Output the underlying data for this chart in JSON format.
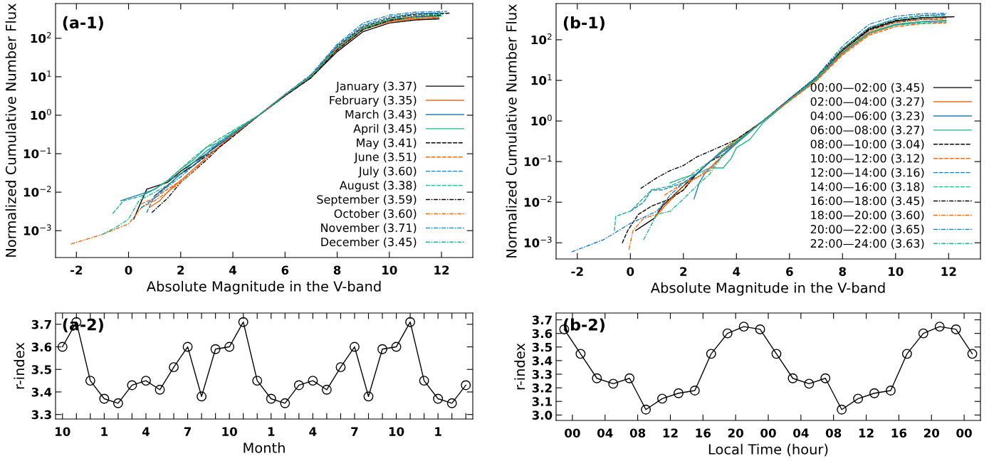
{
  "chart_data": [
    {
      "type": "line",
      "xlabel": "Absolute Magnitude in the V-band",
      "ylabel": "Normalized Cumulative Number Flux",
      "annotations": [
        "(a-1)"
      ],
      "log": "y",
      "legend": "bottom right",
      "xlim": [
        -2.8,
        13.2
      ],
      "xticks": [
        -2,
        0,
        2,
        4,
        6,
        8,
        10,
        12
      ],
      "ylim": [
        0.0002,
        800
      ],
      "yticks": [
        {
          "value": 0.001,
          "label": "10$^{−3}$"
        },
        {
          "value": 0.01,
          "label": "10$^{−2}$"
        },
        {
          "value": 0.1,
          "label": "10$^{−1}$"
        },
        {
          "value": 1,
          "label": "10$^{0}$"
        },
        {
          "value": 10,
          "label": "10$^{1}$"
        },
        {
          "value": 100,
          "label": "10$^{2}$"
        }
      ],
      "series": [
        {
          "name": "January (3.37)",
          "color": "#000000",
          "line_style": "solid",
          "x": [
            0.2,
            0.5,
            0.7,
            1.5,
            2,
            2.5,
            3,
            3.5,
            4,
            5,
            6,
            7,
            8,
            9,
            10,
            11,
            11.9
          ],
          "values": [
            0.002,
            0.006,
            0.012,
            0.018,
            0.035,
            0.06,
            0.1,
            0.18,
            0.3,
            1.0,
            3.2,
            9.5,
            45,
            150,
            250,
            300,
            320
          ]
        },
        {
          "name": "February (3.35)",
          "color": "#e66c1e",
          "line_style": "solid",
          "x": [
            0.8,
            1.2,
            1.6,
            2,
            2.5,
            3,
            3.5,
            4,
            5,
            6,
            7,
            8,
            9,
            10,
            11,
            11.9
          ],
          "values": [
            0.004,
            0.006,
            0.012,
            0.02,
            0.04,
            0.08,
            0.16,
            0.33,
            1.0,
            3.3,
            10,
            50,
            170,
            270,
            320,
            340
          ]
        },
        {
          "name": "March (3.43)",
          "color": "#1f7fc0",
          "line_style": "solid",
          "x": [
            -0.3,
            0.7,
            1,
            1.5,
            2,
            2.5,
            3,
            3.5,
            4,
            5,
            6,
            7,
            8,
            9,
            10,
            11,
            11.9
          ],
          "values": [
            0.006,
            0.01,
            0.012,
            0.02,
            0.03,
            0.05,
            0.1,
            0.2,
            0.33,
            1.0,
            3.3,
            10,
            55,
            180,
            300,
            370,
            390
          ]
        },
        {
          "name": "April (3.45)",
          "color": "#26b38a",
          "line_style": "solid",
          "x": [
            0.5,
            1,
            1.5,
            2,
            2.5,
            3,
            3.5,
            4,
            5,
            6,
            7,
            8,
            9,
            10,
            11,
            11.9
          ],
          "values": [
            0.008,
            0.012,
            0.02,
            0.04,
            0.07,
            0.15,
            0.2,
            0.35,
            1.0,
            3.4,
            10,
            55,
            180,
            290,
            350,
            370
          ]
        },
        {
          "name": "May (3.41)",
          "color": "#000000",
          "line_style": "dashed",
          "x": [
            1,
            1.5,
            2,
            2.5,
            3,
            3.5,
            4,
            5,
            6,
            7,
            8,
            9,
            10,
            11,
            12.3
          ],
          "values": [
            0.008,
            0.015,
            0.03,
            0.05,
            0.09,
            0.15,
            0.28,
            1.0,
            3.3,
            10.5,
            60,
            200,
            330,
            420,
            450
          ]
        },
        {
          "name": "June (3.51)",
          "color": "#e66c1e",
          "line_style": "dashed",
          "x": [
            0.5,
            1,
            1.5,
            2,
            2.5,
            3,
            3.5,
            4,
            5,
            6,
            7,
            8,
            9,
            10,
            11,
            11.9
          ],
          "values": [
            0.005,
            0.007,
            0.012,
            0.02,
            0.04,
            0.08,
            0.16,
            0.3,
            1.0,
            3.5,
            10,
            52,
            170,
            280,
            330,
            350
          ]
        },
        {
          "name": "July (3.60)",
          "color": "#1f7fc0",
          "line_style": "dashed",
          "x": [
            0.7,
            1,
            1.5,
            2,
            2.5,
            3,
            3.5,
            4,
            5,
            6,
            7,
            8,
            9,
            10,
            11,
            12
          ],
          "values": [
            0.003,
            0.008,
            0.015,
            0.03,
            0.06,
            0.12,
            0.18,
            0.33,
            1.0,
            3.4,
            11,
            65,
            220,
            360,
            440,
            460
          ]
        },
        {
          "name": "August (3.38)",
          "color": "#26b38a",
          "line_style": "dashed",
          "x": [
            -0.6,
            -0.2,
            0.2,
            0.5,
            1,
            1.5,
            2,
            2.5,
            3,
            3.5,
            4,
            5,
            6,
            7,
            8,
            9,
            10,
            11,
            12
          ],
          "values": [
            0.0028,
            0.006,
            0.007,
            0.008,
            0.012,
            0.02,
            0.04,
            0.08,
            0.15,
            0.25,
            0.4,
            1.0,
            3.3,
            10,
            55,
            180,
            300,
            360,
            380
          ]
        },
        {
          "name": "September (3.59)",
          "color": "#000000",
          "line_style": "dashdot",
          "x": [
            0.9,
            1.5,
            2,
            2.5,
            3,
            3.5,
            4,
            5,
            6,
            7,
            8,
            9,
            10,
            11,
            12
          ],
          "values": [
            0.003,
            0.007,
            0.018,
            0.035,
            0.07,
            0.15,
            0.28,
            1.0,
            3.2,
            9.5,
            50,
            170,
            290,
            370,
            400
          ]
        },
        {
          "name": "October (3.60)",
          "color": "#e66c1e",
          "line_style": "dashdot",
          "x": [
            -2.2,
            -1,
            0,
            0.5,
            1,
            1.5,
            2,
            2.5,
            3,
            3.5,
            4,
            5,
            6,
            7,
            8,
            9,
            10,
            11,
            11.8
          ],
          "values": [
            0.00045,
            0.0008,
            0.0015,
            0.004,
            0.006,
            0.01,
            0.018,
            0.035,
            0.08,
            0.16,
            0.3,
            1.0,
            3.4,
            10.5,
            55,
            190,
            320,
            360,
            370
          ]
        },
        {
          "name": "November (3.71)",
          "color": "#1f7fc0",
          "line_style": "dashdot",
          "x": [
            0.5,
            1,
            1.5,
            2,
            2.5,
            3,
            3.5,
            4,
            5,
            6,
            7,
            8,
            9,
            10,
            11,
            12.2
          ],
          "values": [
            0.004,
            0.007,
            0.014,
            0.025,
            0.05,
            0.1,
            0.2,
            0.33,
            1.0,
            3.5,
            11.5,
            70,
            250,
            400,
            480,
            500
          ]
        },
        {
          "name": "December (3.45)",
          "color": "#26b38a",
          "line_style": "dashdot",
          "x": [
            -1,
            -0.5,
            0,
            0.4,
            1,
            1.5,
            2,
            2.5,
            3,
            3.5,
            4,
            5,
            6,
            7,
            8,
            9,
            10,
            11,
            12.1
          ],
          "values": [
            0.0008,
            0.0012,
            0.002,
            0.006,
            0.01,
            0.015,
            0.03,
            0.06,
            0.12,
            0.22,
            0.38,
            1.0,
            3.4,
            10.5,
            58,
            190,
            320,
            400,
            420
          ]
        }
      ]
    },
    {
      "type": "line",
      "xlabel": "Absolute Magnitude in the V-band",
      "ylabel": "Normalized Cumulative Number Flux",
      "annotations": [
        "(b-1)"
      ],
      "log": "y",
      "legend": "bottom right",
      "xlim": [
        -2.8,
        13.2
      ],
      "xticks": [
        -2,
        0,
        2,
        4,
        6,
        8,
        10,
        12
      ],
      "ylim": [
        0.0004,
        780
      ],
      "yticks": [
        {
          "value": 0.001,
          "label": "10$^{−3}$"
        },
        {
          "value": 0.01,
          "label": "10$^{−2}$"
        },
        {
          "value": 0.1,
          "label": "10$^{−1}$"
        },
        {
          "value": 1,
          "label": "10$^{0}$"
        },
        {
          "value": 10,
          "label": "10$^{1}$"
        },
        {
          "value": 100,
          "label": "10$^{2}$"
        }
      ],
      "series": [
        {
          "name": "00:00—02:00 (3.45)",
          "color": "#000000",
          "line_style": "solid",
          "x": [
            0.2,
            0.9,
            1.2,
            2,
            2.5,
            3,
            3.5,
            4,
            5,
            6,
            7,
            8,
            9,
            10,
            11,
            12.2
          ],
          "values": [
            0.002,
            0.004,
            0.008,
            0.025,
            0.05,
            0.1,
            0.18,
            0.3,
            1.0,
            3.3,
            11,
            55,
            180,
            290,
            350,
            370
          ]
        },
        {
          "name": "02:00—04:00 (3.27)",
          "color": "#e66c1e",
          "line_style": "solid",
          "x": [
            0.9,
            1.3,
            1.7,
            2,
            2.5,
            3,
            3.5,
            4,
            5,
            6,
            7,
            8,
            9,
            10,
            11,
            11.9
          ],
          "values": [
            0.004,
            0.008,
            0.015,
            0.02,
            0.05,
            0.1,
            0.2,
            0.35,
            1.0,
            3.2,
            10,
            45,
            140,
            230,
            280,
            300
          ]
        },
        {
          "name": "04:00—06:00 (3.23)",
          "color": "#1f7fc0",
          "line_style": "solid",
          "x": [
            2.4,
            2.6,
            2.8,
            3,
            3.5,
            4,
            5,
            6,
            7,
            8,
            9,
            10,
            11,
            11.9
          ],
          "values": [
            0.012,
            0.03,
            0.05,
            0.07,
            0.14,
            0.28,
            1.0,
            3.2,
            10,
            48,
            150,
            240,
            280,
            290
          ]
        },
        {
          "name": "06:00—08:00 (3.27)",
          "color": "#26b38a",
          "line_style": "solid",
          "x": [
            1.5,
            2,
            2.5,
            3,
            3.5,
            3.8,
            4,
            4.5,
            5,
            6,
            7,
            8,
            9,
            10,
            11,
            11.9
          ],
          "values": [
            0.03,
            0.04,
            0.05,
            0.07,
            0.07,
            0.12,
            0.22,
            0.35,
            0.9,
            3.2,
            10,
            50,
            150,
            240,
            280,
            300
          ]
        },
        {
          "name": "08:00—10:00 (3.04)",
          "color": "#000000",
          "line_style": "dashed",
          "x": [
            -0.3,
            -0.1,
            0.3,
            0.8,
            1.5,
            2,
            2.5,
            3,
            3.5,
            4,
            5,
            6,
            7,
            8,
            9,
            10,
            11,
            11.9
          ],
          "values": [
            0.001,
            0.002,
            0.005,
            0.008,
            0.012,
            0.02,
            0.05,
            0.1,
            0.15,
            0.3,
            1.0,
            3.5,
            11,
            55,
            170,
            270,
            320,
            330
          ]
        },
        {
          "name": "10:00—12:00 (3.12)",
          "color": "#e66c1e",
          "line_style": "dashed",
          "x": [
            1.3,
            2,
            2.5,
            3,
            3.5,
            4,
            5,
            6,
            7,
            8,
            9,
            10,
            11,
            11.9
          ],
          "values": [
            0.015,
            0.03,
            0.04,
            0.06,
            0.15,
            0.3,
            1.0,
            3.1,
            9.5,
            42,
            130,
            210,
            250,
            260
          ]
        },
        {
          "name": "12:00—14:00 (3.16)",
          "color": "#1f7fc0",
          "line_style": "dashed",
          "x": [
            0,
            0.5,
            0.8,
            1.2,
            2,
            2.5,
            3,
            3.5,
            4,
            5,
            6,
            7,
            8,
            9,
            10,
            11,
            11.9
          ],
          "values": [
            0.006,
            0.01,
            0.02,
            0.02,
            0.03,
            0.05,
            0.1,
            0.18,
            0.3,
            1.0,
            3.4,
            11,
            60,
            200,
            330,
            400,
            420
          ]
        },
        {
          "name": "14:00—16:00 (3.18)",
          "color": "#26b38a",
          "line_style": "dashed",
          "x": [
            -0.6,
            -0.55,
            0,
            0.8,
            1.5,
            2,
            2.5,
            3,
            3.5,
            4,
            5,
            6,
            7,
            8,
            9,
            10,
            11,
            11.9
          ],
          "values": [
            0.002,
            0.0045,
            0.006,
            0.02,
            0.025,
            0.035,
            0.06,
            0.1,
            0.2,
            0.32,
            1.0,
            3.3,
            10.5,
            50,
            150,
            230,
            260,
            270
          ]
        },
        {
          "name": "16:00—18:00 (3.45)",
          "color": "#000000",
          "line_style": "dashdot",
          "x": [
            0.4,
            1,
            1.5,
            2,
            2.5,
            3,
            3.5,
            4,
            5,
            6,
            7,
            8,
            9,
            10,
            11,
            11.9
          ],
          "values": [
            0.022,
            0.04,
            0.06,
            0.08,
            0.13,
            0.18,
            0.25,
            0.35,
            1.0,
            3.5,
            12,
            60,
            190,
            300,
            350,
            360
          ]
        },
        {
          "name": "18:00—20:00 (3.60)",
          "color": "#e66c1e",
          "line_style": "dashdot",
          "x": [
            -0.05,
            0.1,
            0.5,
            1,
            1.5,
            2,
            2.5,
            3,
            3.5,
            4,
            5,
            6,
            7,
            8,
            9,
            10,
            11,
            11.9
          ],
          "values": [
            0.0007,
            0.002,
            0.004,
            0.005,
            0.012,
            0.025,
            0.04,
            0.07,
            0.15,
            0.3,
            1.0,
            3.3,
            10,
            52,
            165,
            270,
            320,
            330
          ]
        },
        {
          "name": "20:00—22:00 (3.65)",
          "color": "#1f7fc0",
          "line_style": "dashdot",
          "x": [
            -2.2,
            -1,
            0,
            1,
            1.5,
            2,
            2.5,
            3,
            3.5,
            4,
            5,
            6,
            7,
            8,
            9,
            10,
            11,
            11.9
          ],
          "values": [
            0.0006,
            0.0012,
            0.003,
            0.006,
            0.015,
            0.03,
            0.05,
            0.1,
            0.18,
            0.3,
            1.0,
            3.5,
            12,
            70,
            240,
            380,
            440,
            450
          ]
        },
        {
          "name": "22:00—24:00 (3.63)",
          "color": "#26b38a",
          "line_style": "dashdot",
          "x": [
            0.5,
            1,
            1.5,
            2,
            2.5,
            3,
            3.5,
            4,
            5,
            6,
            7,
            8,
            9,
            10,
            11,
            11.9
          ],
          "values": [
            0.0012,
            0.005,
            0.006,
            0.012,
            0.025,
            0.05,
            0.15,
            0.3,
            1.0,
            3.3,
            11,
            60,
            200,
            320,
            380,
            400
          ]
        }
      ]
    },
    {
      "type": "line",
      "xlabel": "Month",
      "ylabel": "r-index",
      "annotations": [
        "(a-2)"
      ],
      "marker": "circle",
      "categories": [
        "10",
        null,
        null,
        "1",
        null,
        null,
        "4",
        null,
        null,
        "7",
        null,
        null,
        "10",
        null,
        null,
        "1",
        null,
        null,
        "4",
        null,
        null,
        "7",
        null,
        null,
        "10",
        null,
        null,
        "1",
        null,
        null
      ],
      "ylim": [
        3.28,
        3.75
      ],
      "yticks": [
        3.3,
        3.4,
        3.5,
        3.6,
        3.7
      ],
      "series": [
        {
          "color": "#000000",
          "values": [
            3.6,
            3.71,
            3.45,
            3.37,
            3.35,
            3.43,
            3.45,
            3.41,
            3.51,
            3.6,
            3.38,
            3.59,
            3.6,
            3.71,
            3.45,
            3.37,
            3.35,
            3.43,
            3.45,
            3.41,
            3.51,
            3.6,
            3.38,
            3.59,
            3.6,
            3.71,
            3.45,
            3.37,
            3.35,
            3.43
          ]
        }
      ]
    },
    {
      "type": "line",
      "xlabel": "Local Time (hour)",
      "ylabel": "r-index",
      "annotations": [
        "(b-2)"
      ],
      "marker": "circle",
      "xlim": [
        -2,
        50
      ],
      "xticks": [
        {
          "value": 0,
          "label": "00"
        },
        {
          "value": 4,
          "label": "04"
        },
        {
          "value": 8,
          "label": "08"
        },
        {
          "value": 12,
          "label": "12"
        },
        {
          "value": 16,
          "label": "16"
        },
        {
          "value": 20,
          "label": "20"
        },
        {
          "value": 24,
          "label": "00"
        },
        {
          "value": 28,
          "label": "04"
        },
        {
          "value": 32,
          "label": "08"
        },
        {
          "value": 36,
          "label": "12"
        },
        {
          "value": 40,
          "label": "16"
        },
        {
          "value": 44,
          "label": "20"
        },
        {
          "value": 48,
          "label": "00"
        }
      ],
      "ylim": [
        2.96,
        3.75
      ],
      "yticks": [
        {
          "value": 3.0,
          "label": "3.0"
        },
        3.1,
        3.2,
        3.3,
        3.4,
        3.5,
        3.6,
        3.7
      ],
      "series": [
        {
          "color": "#000000",
          "x": [
            -1,
            1,
            3,
            5,
            7,
            9,
            11,
            13,
            15,
            17,
            19,
            21,
            23,
            25,
            27,
            29,
            31,
            33,
            35,
            37,
            39,
            41,
            43,
            45,
            47,
            49
          ],
          "values": [
            3.63,
            3.45,
            3.27,
            3.23,
            3.27,
            3.04,
            3.12,
            3.16,
            3.18,
            3.45,
            3.6,
            3.65,
            3.63,
            3.45,
            3.27,
            3.23,
            3.27,
            3.04,
            3.12,
            3.16,
            3.18,
            3.45,
            3.6,
            3.65,
            3.63,
            3.45
          ]
        }
      ]
    }
  ]
}
